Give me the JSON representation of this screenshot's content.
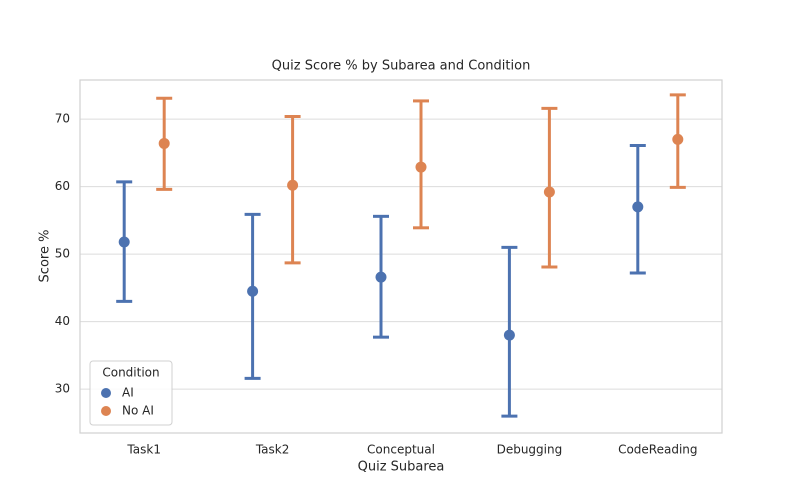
{
  "chart_data": {
    "type": "pointplot",
    "title": "Quiz Score % by Subarea and Condition",
    "x_label": "Quiz Subarea",
    "y_label": "Score %",
    "categories": [
      "Task1",
      "Task2",
      "Conceptual",
      "Debugging",
      "CodeReading"
    ],
    "series": [
      {
        "name": "AI",
        "color": "#4c72b0",
        "values": [
          51.8,
          44.5,
          46.6,
          38.0,
          57.0
        ],
        "lower": [
          43.0,
          31.6,
          37.7,
          26.0,
          47.2
        ],
        "upper": [
          60.7,
          55.9,
          55.6,
          51.0,
          66.1
        ]
      },
      {
        "name": "No AI",
        "color": "#dd8452",
        "values": [
          66.4,
          60.2,
          62.9,
          59.2,
          67.0
        ],
        "lower": [
          59.6,
          48.7,
          53.9,
          48.1,
          59.9
        ],
        "upper": [
          73.1,
          70.4,
          72.7,
          71.6,
          73.6
        ]
      }
    ],
    "ylim": [
      23.5,
      75.8
    ],
    "yticks": [
      30,
      40,
      50,
      60,
      70
    ],
    "grid": true,
    "legend": {
      "title": "Condition",
      "position": "lower left"
    }
  }
}
